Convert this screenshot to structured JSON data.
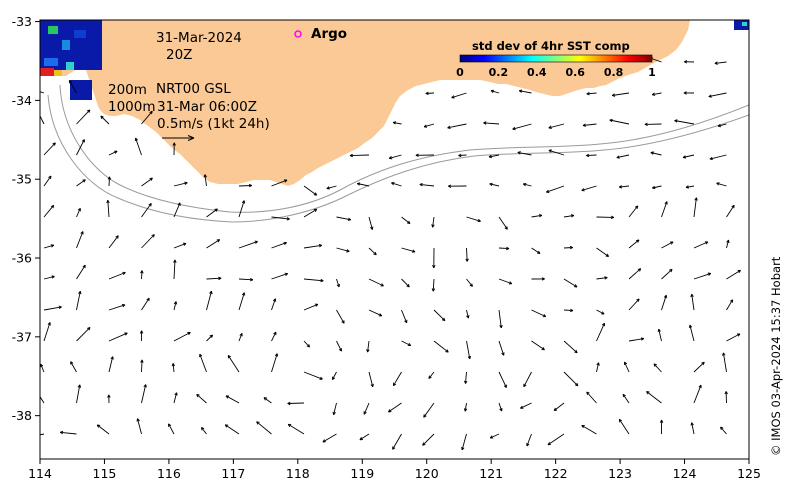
{
  "map": {
    "x_ticks": [
      "114",
      "115",
      "116",
      "117",
      "118",
      "119",
      "120",
      "121",
      "122",
      "123",
      "124",
      "125"
    ],
    "y_ticks": [
      "-33",
      "-34",
      "-35",
      "-36",
      "-37",
      "-38"
    ],
    "lon_range": [
      114,
      125
    ],
    "lat_range": [
      -38.55,
      -32.98
    ],
    "land_color": "#fbc995",
    "arrow_color": "#000000",
    "isobath_color": "#9a9a9a"
  },
  "annotations": {
    "date_line1": "31-Mar-2024",
    "date_line2": "20Z",
    "argo_label": "Argo",
    "argo_marker_color": "#ff00ff",
    "isobath_200": "200m",
    "isobath_1000": "1000m",
    "product": "NRT00 GSL",
    "product_time": "31-Mar 06:00Z",
    "scale_label": "0.5m/s (1kt 24h)"
  },
  "colorbar": {
    "title": "std dev of 4hr SST comp",
    "ticks": [
      "0",
      "0.2",
      "0.4",
      "0.6",
      "0.8",
      "1"
    ],
    "colors": [
      "#000080",
      "#0000ff",
      "#0080ff",
      "#00ffff",
      "#80ff80",
      "#ffff00",
      "#ff8000",
      "#ff0000",
      "#800000"
    ]
  },
  "credit": "© IMOS 03-Apr-2024 15:37 Hobart"
}
